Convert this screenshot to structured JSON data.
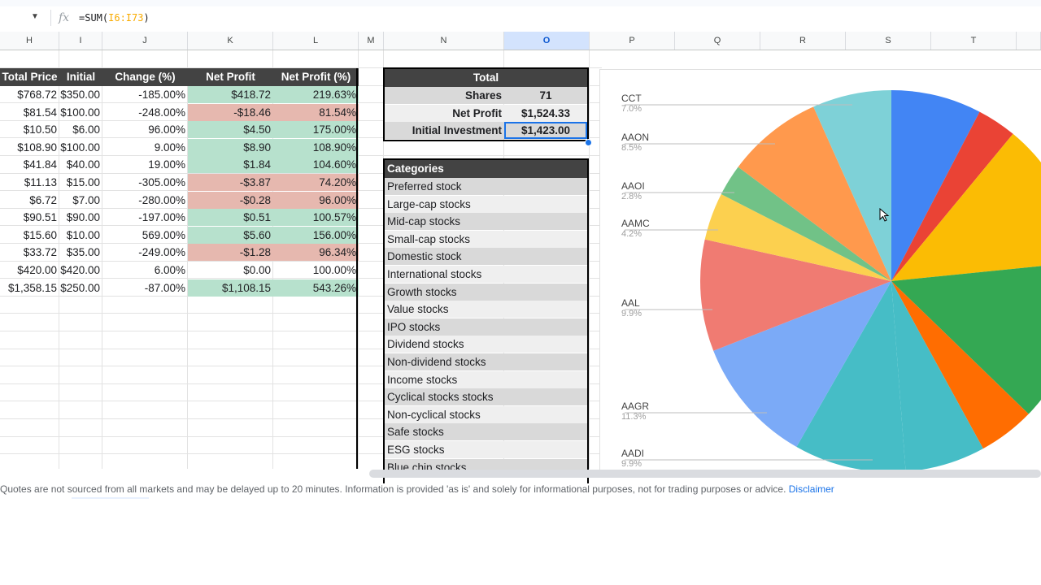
{
  "formula_bar": {
    "fx": "fx",
    "formula_prefix": "=SUM(",
    "formula_range": "I6:I73",
    "formula_suffix": ")"
  },
  "columns": [
    "H",
    "I",
    "J",
    "K",
    "L",
    "M",
    "N",
    "O",
    "P",
    "Q",
    "R",
    "S",
    "T"
  ],
  "table": {
    "headers": [
      "Total Price",
      "Initial",
      "Change (%)",
      "Net Profit",
      "Net Profit (%)"
    ],
    "rows": [
      {
        "total": "$768.72",
        "initial": "$350.00",
        "change": "-185.00%",
        "profit": "$418.72",
        "profit_pct": "219.63%",
        "status": "gain"
      },
      {
        "total": "$81.54",
        "initial": "$100.00",
        "change": "-248.00%",
        "profit": "-$18.46",
        "profit_pct": "81.54%",
        "status": "loss"
      },
      {
        "total": "$10.50",
        "initial": "$6.00",
        "change": "96.00%",
        "profit": "$4.50",
        "profit_pct": "175.00%",
        "status": "gain"
      },
      {
        "total": "$108.90",
        "initial": "$100.00",
        "change": "9.00%",
        "profit": "$8.90",
        "profit_pct": "108.90%",
        "status": "gain"
      },
      {
        "total": "$41.84",
        "initial": "$40.00",
        "change": "19.00%",
        "profit": "$1.84",
        "profit_pct": "104.60%",
        "status": "gain"
      },
      {
        "total": "$11.13",
        "initial": "$15.00",
        "change": "-305.00%",
        "profit": "-$3.87",
        "profit_pct": "74.20%",
        "status": "loss"
      },
      {
        "total": "$6.72",
        "initial": "$7.00",
        "change": "-280.00%",
        "profit": "-$0.28",
        "profit_pct": "96.00%",
        "status": "loss"
      },
      {
        "total": "$90.51",
        "initial": "$90.00",
        "change": "-197.00%",
        "profit": "$0.51",
        "profit_pct": "100.57%",
        "status": "gain"
      },
      {
        "total": "$15.60",
        "initial": "$10.00",
        "change": "569.00%",
        "profit": "$5.60",
        "profit_pct": "156.00%",
        "status": "gain"
      },
      {
        "total": "$33.72",
        "initial": "$35.00",
        "change": "-249.00%",
        "profit": "-$1.28",
        "profit_pct": "96.34%",
        "status": "loss"
      },
      {
        "total": "$420.00",
        "initial": "$420.00",
        "change": "6.00%",
        "profit": "$0.00",
        "profit_pct": "100.00%",
        "status": "neutral"
      },
      {
        "total": "$1,358.15",
        "initial": "$250.00",
        "change": "-87.00%",
        "profit": "$1,108.15",
        "profit_pct": "543.26%",
        "status": "gain"
      }
    ]
  },
  "total_box": {
    "title": "Total",
    "rows": [
      {
        "label": "Shares",
        "value": "71"
      },
      {
        "label": "Net Profit",
        "value": "$1,524.33"
      },
      {
        "label": "Initial Investment",
        "value": "$1,423.00"
      }
    ]
  },
  "categories": {
    "title": "Categories",
    "items": [
      "Preferred stock",
      "Large-cap stocks",
      "Mid-cap stocks",
      "Small-cap stocks",
      "Domestic stock",
      "International stocks",
      "Growth stocks",
      "Value stocks",
      "IPO stocks",
      "Dividend stocks",
      "Non-dividend stocks",
      "Income stocks",
      "Cyclical stocks stocks",
      "Non-cyclical stocks",
      "Safe stocks",
      "ESG stocks",
      "Blue chip stocks"
    ]
  },
  "chart_data": {
    "type": "pie",
    "slices": [
      {
        "label": "",
        "value": 8.0,
        "color": "#4285f4"
      },
      {
        "label": "",
        "value": 3.5,
        "color": "#ea4335"
      },
      {
        "label": "",
        "value": 13.0,
        "color": "#fbbc04"
      },
      {
        "label": "",
        "value": 14.5,
        "color": "#34a853"
      },
      {
        "label": "",
        "value": 5.0,
        "color": "#ff6d01"
      },
      {
        "label": "",
        "value": 7.1,
        "color": "#46bdc6"
      },
      {
        "label": "AADI",
        "value": 9.9,
        "color": "#46bdc6"
      },
      {
        "label": "AAGR",
        "value": 11.3,
        "color": "#7baaf7"
      },
      {
        "label": "AAL",
        "value": 9.9,
        "color": "#f07b72"
      },
      {
        "label": "AAMC",
        "value": 4.2,
        "color": "#fcd04f"
      },
      {
        "label": "AAOI",
        "value": 2.8,
        "color": "#71c287"
      },
      {
        "label": "AAON",
        "value": 8.5,
        "color": "#ff994d"
      },
      {
        "label": "CCT",
        "value": 7.0,
        "color": "#7ed1d7"
      }
    ],
    "legend": [
      {
        "name": "CCT",
        "pct": "7.0%"
      },
      {
        "name": "AAON",
        "pct": "8.5%"
      },
      {
        "name": "AAOI",
        "pct": "2.8%"
      },
      {
        "name": "AAMC",
        "pct": "4.2%"
      },
      {
        "name": "AAL",
        "pct": "9.9%"
      },
      {
        "name": "AAGR",
        "pct": "11.3%"
      },
      {
        "name": "AADI",
        "pct": "9.9%"
      }
    ]
  },
  "footer": {
    "notice": "Quotes are not sourced from all markets and may be delayed up to 20 minutes. Information is provided 'as is' and solely for informational purposes, not for trading purposes or advice.",
    "link": "Disclaimer"
  }
}
